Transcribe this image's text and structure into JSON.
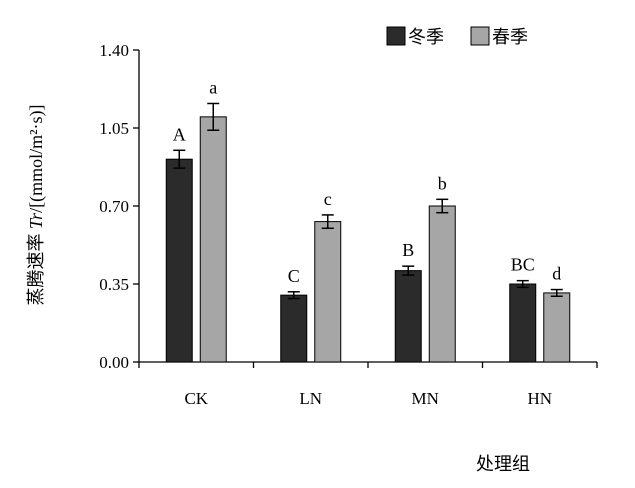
{
  "chart_data": {
    "type": "bar",
    "categories": [
      "CK",
      "LN",
      "MN",
      "HN"
    ],
    "series": [
      {
        "name": "冬季",
        "color": "#2b2b2b",
        "values": [
          0.91,
          0.3,
          0.41,
          0.35
        ],
        "errors": [
          0.04,
          0.015,
          0.02,
          0.015
        ],
        "labels": [
          "A",
          "C",
          "B",
          "BC"
        ]
      },
      {
        "name": "春季",
        "color": "#a6a6a6",
        "values": [
          1.1,
          0.63,
          0.7,
          0.31
        ],
        "errors": [
          0.06,
          0.03,
          0.03,
          0.015
        ],
        "labels": [
          "a",
          "c",
          "b",
          "d"
        ]
      }
    ],
    "yticks": [
      "0.00",
      "0.35",
      "0.70",
      "1.05",
      "1.40"
    ],
    "ylim": [
      0,
      1.4
    ],
    "ylabel_prefix": "蒸腾速率 ",
    "ylabel_symbol": "Tr",
    "ylabel_unit": "/[(mmol/m²·s)]",
    "xlabel": "处理组",
    "legend_position": "top-right",
    "grid": false
  }
}
